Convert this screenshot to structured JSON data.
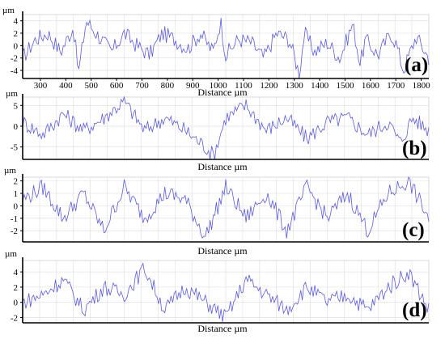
{
  "chart_data": [
    {
      "type": "line",
      "panel_label": "(a)",
      "y_unit": "µm",
      "xlabel": "Distance µm",
      "x_ticks": [
        "300",
        "400",
        "500",
        "600",
        "700",
        "800",
        "900",
        "1000",
        "1100",
        "1200",
        "1300",
        "1400",
        "1500",
        "1600",
        "1700",
        "1800"
      ],
      "y_ticks": [
        "4",
        "2",
        "0",
        "-2",
        "-4"
      ],
      "xlim": [
        230,
        1830
      ],
      "ylim": [
        -5.3,
        5
      ],
      "grid": true,
      "series": [
        {
          "x": [
            230,
            280,
            330,
            380,
            430,
            450,
            480,
            530,
            580,
            630,
            680,
            730,
            780,
            830,
            880,
            930,
            980,
            1010,
            1030,
            1080,
            1130,
            1180,
            1230,
            1280,
            1320,
            1340,
            1380,
            1430,
            1480,
            1530,
            1560,
            1580,
            1630,
            1680,
            1700,
            1730,
            1780,
            1830
          ],
          "y": [
            -2,
            1,
            2,
            -1,
            3,
            -4.5,
            4,
            1.5,
            -1,
            2,
            0,
            -1.5,
            2,
            1,
            -0.5,
            2,
            -1,
            4,
            -1.5,
            1,
            0.5,
            -2,
            2,
            1,
            -4.5,
            2,
            -1,
            0.5,
            -2,
            3.5,
            -3,
            1,
            -1.5,
            2,
            0.5,
            -4,
            1.5,
            -2
          ]
        }
      ]
    },
    {
      "type": "line",
      "panel_label": "(b)",
      "y_unit": "µm",
      "xlabel": "Distance µm",
      "y_ticks": [
        "5",
        "0",
        "-5"
      ],
      "ylim": [
        -8,
        7
      ],
      "grid": true,
      "series": [
        {
          "x": [
            0,
            0.05,
            0.1,
            0.15,
            0.2,
            0.25,
            0.3,
            0.35,
            0.4,
            0.45,
            0.47,
            0.5,
            0.55,
            0.6,
            0.65,
            0.7,
            0.75,
            0.8,
            0.85,
            0.9,
            0.93,
            0.96,
            1
          ],
          "y": [
            1,
            -2,
            3,
            -1,
            2,
            6,
            -1,
            2,
            -1,
            -5,
            -7,
            2,
            5,
            -1,
            2,
            -3,
            1,
            2,
            -2,
            1,
            -4,
            2,
            -1
          ]
        }
      ]
    },
    {
      "type": "line",
      "panel_label": "(c)",
      "y_unit": "µm",
      "xlabel": "Distance µm",
      "y_ticks": [
        "2",
        "1",
        "0",
        "-1",
        "-2"
      ],
      "ylim": [
        -2.9,
        2.3
      ],
      "grid": true,
      "series": [
        {
          "x": [
            0,
            0.05,
            0.1,
            0.15,
            0.2,
            0.25,
            0.3,
            0.35,
            0.4,
            0.45,
            0.5,
            0.55,
            0.6,
            0.65,
            0.7,
            0.75,
            0.8,
            0.85,
            0.9,
            0.95,
            1
          ],
          "y": [
            0.5,
            1.5,
            -1,
            1,
            -2,
            1.5,
            -1,
            1,
            0.5,
            -2.5,
            1.5,
            -1,
            1,
            -2,
            1.5,
            -1,
            1,
            -2,
            1,
            2,
            -1
          ]
        }
      ]
    },
    {
      "type": "line",
      "panel_label": "(d)",
      "y_unit": "µm",
      "xlabel": "Distance µm",
      "y_ticks": [
        "4",
        "2",
        "0",
        "-2"
      ],
      "ylim": [
        -2.7,
        5.5
      ],
      "grid": true,
      "series": [
        {
          "x": [
            0,
            0.05,
            0.1,
            0.15,
            0.2,
            0.25,
            0.3,
            0.35,
            0.4,
            0.45,
            0.5,
            0.55,
            0.6,
            0.65,
            0.7,
            0.75,
            0.8,
            0.85,
            0.9,
            0.95,
            1
          ],
          "y": [
            0,
            1,
            3,
            -1,
            2,
            1,
            4.5,
            -1,
            2,
            0,
            -2,
            3,
            1,
            -1,
            2,
            0,
            1,
            -1,
            2,
            4,
            -1
          ]
        }
      ]
    }
  ]
}
